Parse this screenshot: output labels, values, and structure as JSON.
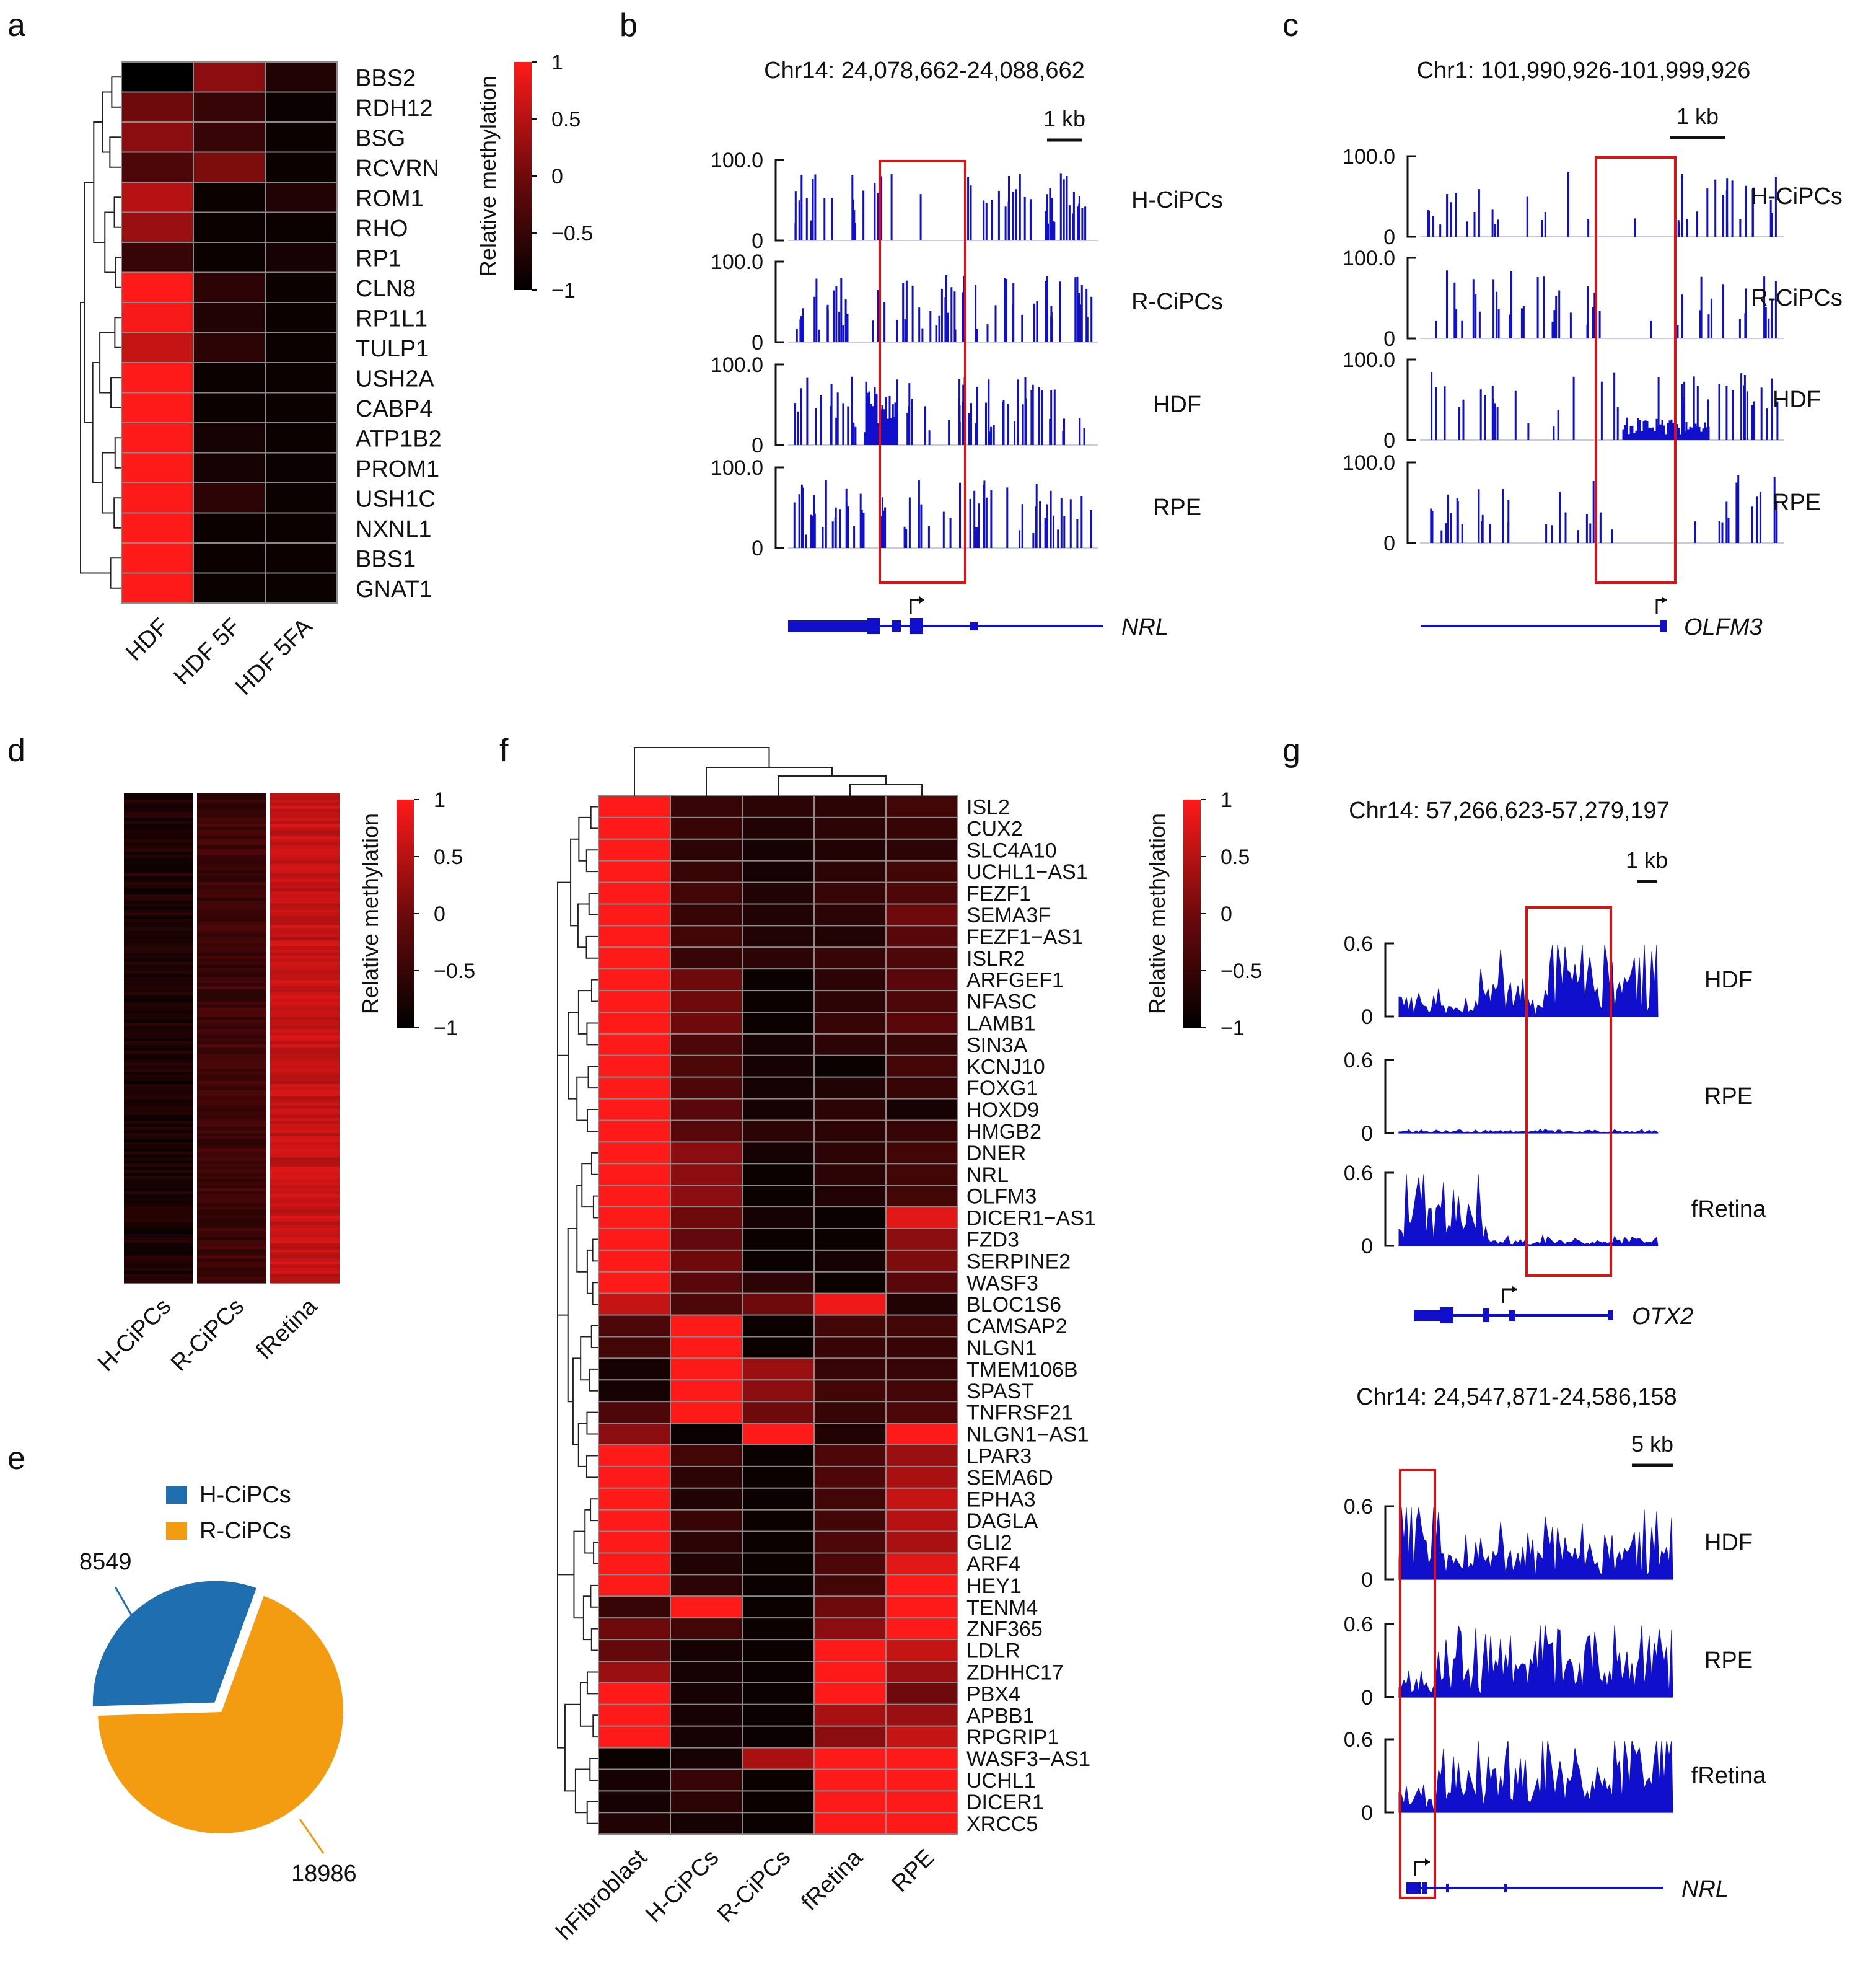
{
  "figure_colors": {
    "high": "#ff1a1a",
    "mid": "#5a0a0a",
    "low": "#000000",
    "track": "#1010cc",
    "box": "#e01010",
    "blue": "#1f6fb0",
    "orange": "#f39c12"
  },
  "colorbar": {
    "title": "Relative methylation",
    "ticks": [
      "1",
      "0.5",
      "0",
      "−0.5",
      "−1"
    ]
  },
  "chart_data": [
    {
      "panel": "a",
      "type": "heatmap",
      "columns": [
        "HDF",
        "HDF 5F",
        "HDF 5FA"
      ],
      "rows": [
        "BBS2",
        "RDH12",
        "BSG",
        "RCVRN",
        "ROM1",
        "RHO",
        "RP1",
        "CLN8",
        "RP1L1",
        "TULP1",
        "USH2A",
        "CABP4",
        "ATP1B2",
        "PROM1",
        "USH1C",
        "NXNL1",
        "BBS1",
        "GNAT1"
      ],
      "values": [
        [
          -1.0,
          0.2,
          -0.7
        ],
        [
          0.0,
          -0.5,
          -0.9
        ],
        [
          0.2,
          -0.5,
          -0.9
        ],
        [
          -0.3,
          0.1,
          -0.9
        ],
        [
          0.5,
          -0.9,
          -0.7
        ],
        [
          0.3,
          -0.9,
          -0.9
        ],
        [
          -0.5,
          -0.9,
          -0.8
        ],
        [
          1.0,
          -0.6,
          -0.9
        ],
        [
          0.95,
          -0.7,
          -0.9
        ],
        [
          0.6,
          -0.6,
          -0.9
        ],
        [
          1.0,
          -0.9,
          -0.9
        ],
        [
          1.0,
          -0.9,
          -0.9
        ],
        [
          1.0,
          -0.8,
          -0.9
        ],
        [
          1.0,
          -0.8,
          -0.9
        ],
        [
          1.0,
          -0.6,
          -0.9
        ],
        [
          1.0,
          -0.9,
          -0.9
        ],
        [
          1.0,
          -0.9,
          -0.9
        ],
        [
          1.0,
          -0.9,
          -0.9
        ]
      ]
    },
    {
      "panel": "b",
      "type": "track",
      "region": "Chr14: 24,078,662-24,088,662",
      "scale_label": "1 kb",
      "ymax": "100.0",
      "ymin": "0",
      "tracks": [
        "H-CiPCs",
        "R-CiPCs",
        "HDF",
        "RPE"
      ],
      "gene": "NRL"
    },
    {
      "panel": "c",
      "type": "track",
      "region": "Chr1: 101,990,926-101,999,926",
      "scale_label": "1 kb",
      "ymax": "100.0",
      "ymin": "0",
      "tracks": [
        "H-CiPCs",
        "R-CiPCs",
        "HDF",
        "RPE"
      ],
      "gene": "OLFM3"
    },
    {
      "panel": "d",
      "type": "heatmap",
      "columns": [
        "H-CiPCs",
        "R-CiPCs",
        "fRetina"
      ],
      "mean_values": [
        -0.75,
        -0.45,
        0.6
      ]
    },
    {
      "panel": "e",
      "type": "pie",
      "labels": [
        "H-CiPCs",
        "R-CiPCs"
      ],
      "values": [
        8549,
        18986
      ],
      "value_labels": [
        "8549",
        "18986"
      ]
    },
    {
      "panel": "f",
      "type": "heatmap",
      "columns": [
        "hFibroblast",
        "H-CiPCs",
        "R-CiPCs",
        "fRetina",
        "RPE"
      ],
      "rows": [
        "ISL2",
        "CUX2",
        "SLC4A10",
        "UCHL1−AS1",
        "FEZF1",
        "SEMA3F",
        "FEZF1−AS1",
        "ISLR2",
        "ARFGEF1",
        "NFASC",
        "LAMB1",
        "SIN3A",
        "KCNJ10",
        "FOXG1",
        "HOXD9",
        "HMGB2",
        "DNER",
        "NRL",
        "OLFM3",
        "DICER1−AS1",
        "FZD3",
        "SERPINE2",
        "WASF3",
        "BLOC1S6",
        "CAMSAP2",
        "NLGN1",
        "TMEM106B",
        "SPAST",
        "TNFRSF21",
        "NLGN1−AS1",
        "LPAR3",
        "SEMA6D",
        "EPHA3",
        "DAGLA",
        "GLI2",
        "ARF4",
        "HEY1",
        "TENM4",
        "ZNF365",
        "LDLR",
        "ZDHHC17",
        "PBX4",
        "APBB1",
        "RPGRIP1",
        "WASF3−AS1",
        "UCHL1",
        "DICER1",
        "XRCC5"
      ],
      "values": [
        [
          1,
          -0.5,
          -0.6,
          -0.6,
          -0.4
        ],
        [
          1,
          -0.5,
          -0.7,
          -0.6,
          -0.5
        ],
        [
          1,
          -0.6,
          -0.8,
          -0.7,
          -0.6
        ],
        [
          1,
          -0.5,
          -0.8,
          -0.6,
          -0.4
        ],
        [
          1,
          -0.4,
          -0.7,
          -0.5,
          -0.3
        ],
        [
          1,
          -0.5,
          -0.7,
          -0.6,
          0.0
        ],
        [
          1,
          -0.4,
          -0.7,
          -0.7,
          -0.2
        ],
        [
          1,
          -0.5,
          -0.6,
          -0.5,
          -0.3
        ],
        [
          1,
          0.0,
          -0.9,
          -0.6,
          -0.2
        ],
        [
          1,
          0.0,
          -0.9,
          -0.6,
          -0.3
        ],
        [
          1,
          0.0,
          -0.9,
          -0.5,
          -0.2
        ],
        [
          1,
          -0.3,
          -0.8,
          -0.6,
          -0.5
        ],
        [
          1,
          -0.3,
          -0.8,
          -0.9,
          -0.4
        ],
        [
          1,
          -0.3,
          -0.8,
          -0.7,
          -0.5
        ],
        [
          1,
          -0.2,
          -0.8,
          -0.6,
          -0.8
        ],
        [
          1,
          -0.2,
          -0.6,
          -0.6,
          -0.5
        ],
        [
          1,
          0.2,
          -0.8,
          -0.6,
          -0.4
        ],
        [
          1,
          0.2,
          -0.9,
          -0.6,
          -0.4
        ],
        [
          1,
          0.2,
          -0.9,
          -0.7,
          -0.4
        ],
        [
          1,
          0.0,
          -0.8,
          -0.9,
          0.8
        ],
        [
          1,
          -0.1,
          -0.9,
          -0.9,
          0.2
        ],
        [
          1,
          0.0,
          -0.9,
          -0.8,
          0.1
        ],
        [
          1,
          -0.2,
          -0.6,
          -0.9,
          -0.2
        ],
        [
          0.6,
          -0.3,
          0.0,
          0.9,
          -0.7
        ],
        [
          -0.3,
          1,
          -0.9,
          -0.4,
          -0.4
        ],
        [
          -0.4,
          1,
          -0.9,
          -0.5,
          -0.5
        ],
        [
          -0.8,
          1,
          0.3,
          -0.5,
          -0.5
        ],
        [
          -0.8,
          1,
          0.2,
          -0.4,
          -0.4
        ],
        [
          -0.3,
          1,
          0.0,
          -0.5,
          -0.3
        ],
        [
          0.2,
          -0.9,
          1,
          -0.7,
          1
        ],
        [
          1,
          -0.4,
          -0.9,
          -0.3,
          0.3
        ],
        [
          1,
          -0.6,
          -0.9,
          -0.3,
          0.4
        ],
        [
          1,
          -0.7,
          -0.9,
          -0.4,
          0.6
        ],
        [
          1,
          -0.5,
          -0.9,
          -0.4,
          0.5
        ],
        [
          1,
          -0.6,
          -0.9,
          -0.3,
          0.4
        ],
        [
          1,
          -0.7,
          -0.9,
          -0.3,
          0.8
        ],
        [
          1,
          -0.6,
          -0.9,
          -0.4,
          1
        ],
        [
          -0.5,
          1,
          -0.9,
          0.0,
          1
        ],
        [
          0.0,
          -0.4,
          -0.9,
          0.2,
          1
        ],
        [
          -0.1,
          -0.8,
          -0.9,
          1,
          0.6
        ],
        [
          0.3,
          -0.8,
          -0.9,
          1,
          0.3
        ],
        [
          1,
          -0.8,
          -0.9,
          1,
          0.0
        ],
        [
          1,
          -0.8,
          -0.9,
          0.4,
          0.3
        ],
        [
          1,
          -0.8,
          -0.9,
          0.2,
          0.6
        ],
        [
          -0.9,
          -0.8,
          0.4,
          1,
          1
        ],
        [
          -0.8,
          -0.5,
          -0.9,
          1,
          1
        ],
        [
          -0.8,
          -0.6,
          -0.9,
          1,
          1
        ],
        [
          -0.7,
          -0.8,
          -0.9,
          1,
          1
        ]
      ]
    },
    {
      "panel": "g1",
      "type": "track",
      "region": "Chr14: 57,266,623-57,279,197",
      "scale_label": "1 kb",
      "ymax": "0.6",
      "ymin": "0",
      "tracks": [
        "HDF",
        "RPE",
        "fRetina"
      ],
      "gene": "OTX2"
    },
    {
      "panel": "g2",
      "type": "track",
      "region": "Chr14: 24,547,871-24,586,158",
      "scale_label": "5 kb",
      "ymax": "0.6",
      "ymin": "0",
      "tracks": [
        "HDF",
        "RPE",
        "fRetina"
      ],
      "gene": "NRL"
    }
  ],
  "panel_letters": [
    "a",
    "b",
    "c",
    "d",
    "e",
    "f",
    "g"
  ]
}
